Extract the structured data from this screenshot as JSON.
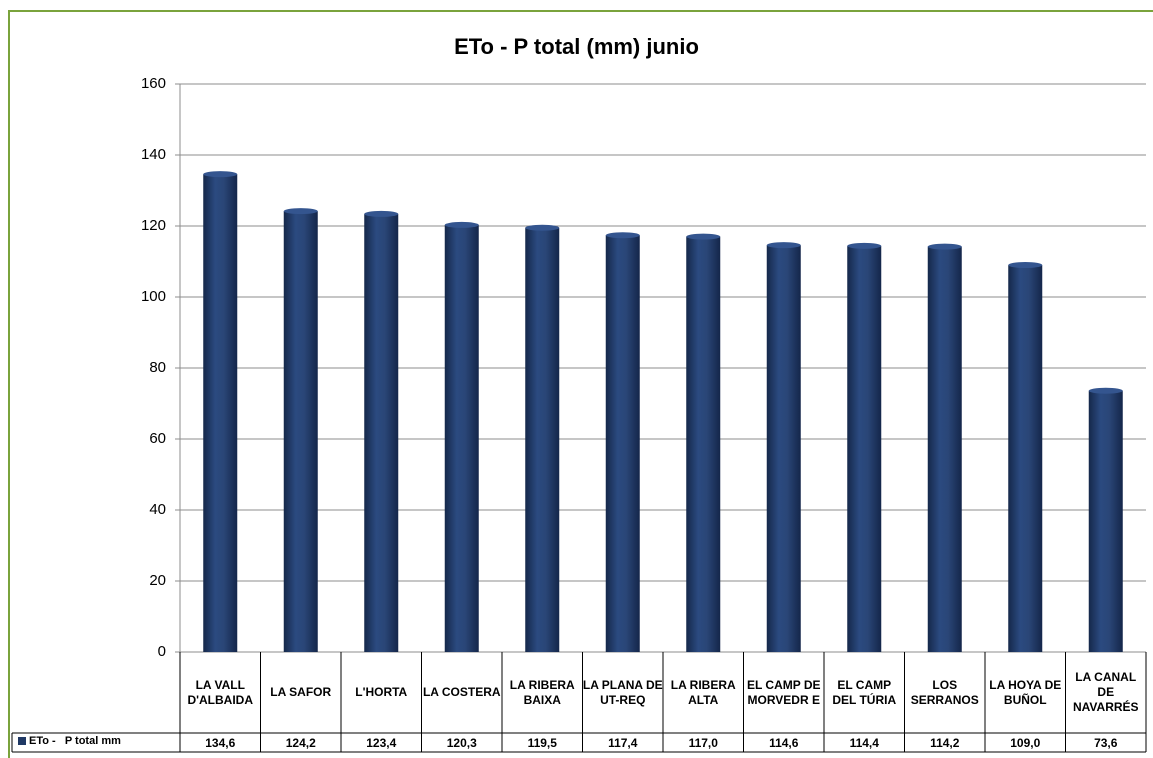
{
  "chart_data": {
    "type": "bar",
    "title": "ETo - P total (mm) junio",
    "categories": [
      "LA VALL D'ALBAIDA",
      "LA SAFOR",
      "L'HORTA",
      "LA COSTERA",
      "LA RIBERA BAIXA",
      "LA PLANA DE UT-REQ",
      "LA RIBERA ALTA",
      "EL CAMP DE MORVEDR E",
      "EL CAMP DEL TÚRIA",
      "LOS SERRANOS",
      "LA HOYA DE BUÑOL",
      "LA CANAL DE NAVARRÉS"
    ],
    "series": [
      {
        "name": "ETo -   P total mm",
        "values": [
          134.6,
          124.2,
          123.4,
          120.3,
          119.5,
          117.4,
          117.0,
          114.6,
          114.4,
          114.2,
          109.0,
          73.6
        ],
        "value_labels": [
          "134,6",
          "124,2",
          "123,4",
          "120,3",
          "119,5",
          "117,4",
          "117,0",
          "114,6",
          "114,4",
          "114,2",
          "109,0",
          "73,6"
        ]
      }
    ],
    "yticks": [
      "0",
      "20",
      "40",
      "60",
      "80",
      "100",
      "120",
      "140",
      "160"
    ],
    "ylim": [
      0,
      160
    ],
    "grid": true,
    "legend": "data-table-left",
    "bar_color": "#1f3864",
    "border_color": "#7aa33c"
  }
}
